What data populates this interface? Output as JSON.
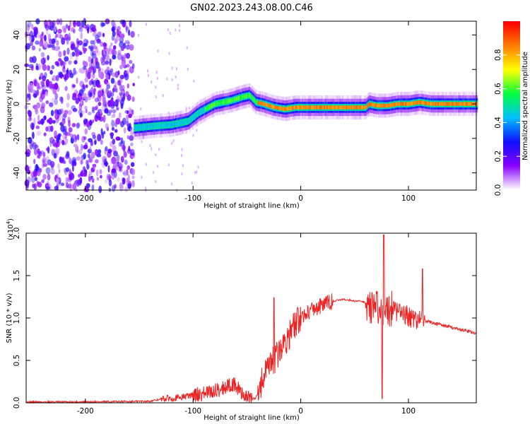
{
  "title": "GN02.2023.243.08.00.C46",
  "chart_data": [
    {
      "type": "heatmap",
      "name": "spectrogram",
      "xlabel": "Height of straight line (km)",
      "ylabel": "Frequency (Hz)",
      "xlim": [
        -255,
        163
      ],
      "ylim": [
        -50,
        48
      ],
      "xticks": [
        -200,
        -100,
        0,
        100
      ],
      "yticks": [
        40,
        20,
        0,
        -20,
        -40
      ],
      "colorbar": {
        "label": "Normalized spectral amplitude",
        "range": [
          0,
          1
        ],
        "ticks": [
          "0.0",
          "0.2",
          "0.4",
          "0.6",
          "0.8"
        ],
        "tick_values": [
          0,
          0.2,
          0.4,
          0.6,
          0.8
        ],
        "colors": [
          "#ffffff",
          "#8a00ff",
          "#1010ff",
          "#00c0ff",
          "#00ff40",
          "#ffff00",
          "#ff8000",
          "#ff0000"
        ]
      },
      "ridge": {
        "x": [
          -155,
          -140,
          -120,
          -105,
          -95,
          -80,
          -65,
          -55,
          -48,
          -42,
          -35,
          -25,
          -15,
          -5,
          10,
          40,
          60,
          63,
          70,
          80,
          90,
          100,
          110,
          120,
          140,
          163
        ],
        "y": [
          -14,
          -13,
          -12,
          -10,
          -5,
          0,
          2,
          4,
          5,
          1,
          0,
          -2,
          -3,
          -2,
          -2,
          -2,
          -2,
          0,
          -1,
          -1,
          0,
          0,
          1,
          0,
          0,
          0
        ]
      },
      "noise_region_x": [
        -255,
        -155
      ]
    },
    {
      "type": "line",
      "name": "snr",
      "xlabel": "Height of straight line (km)",
      "ylabel": "SNR (10 * v/v)",
      "exponent_label": "(x10",
      "exponent_power": "4",
      "exponent_close": ")",
      "xlim": [
        -255,
        163
      ],
      "ylim": [
        0,
        2.0
      ],
      "xticks": [
        -200,
        -100,
        0,
        100
      ],
      "yticks": [
        "0.0",
        "0.5",
        "1.0",
        "1.5",
        "2.0"
      ],
      "ytick_values": [
        0,
        0.5,
        1.0,
        1.5,
        2.0
      ],
      "color": "#ee2222",
      "x": [
        -255,
        -200,
        -160,
        -140,
        -125,
        -115,
        -105,
        -95,
        -85,
        -75,
        -68,
        -62,
        -55,
        -48,
        -42,
        -35,
        -30,
        -25,
        -20,
        -15,
        -10,
        -5,
        0,
        5,
        10,
        20,
        30,
        40,
        50,
        55,
        60,
        65,
        70,
        73,
        76,
        78,
        80,
        85,
        90,
        95,
        100,
        105,
        110,
        115,
        120,
        130,
        140,
        150,
        163
      ],
      "y": [
        0.01,
        0.01,
        0.015,
        0.02,
        0.05,
        0.06,
        0.08,
        0.1,
        0.12,
        0.16,
        0.2,
        0.22,
        0.12,
        0.05,
        0.05,
        0.28,
        0.4,
        0.5,
        0.6,
        0.72,
        0.82,
        0.92,
        1.0,
        1.06,
        1.1,
        1.15,
        1.2,
        1.22,
        1.2,
        1.2,
        1.18,
        1.15,
        1.12,
        1.1,
        1.1,
        1.1,
        1.12,
        1.1,
        1.07,
        1.05,
        1.02,
        0.99,
        0.98,
        0.97,
        0.95,
        0.92,
        0.89,
        0.86,
        0.82
      ]
    }
  ]
}
